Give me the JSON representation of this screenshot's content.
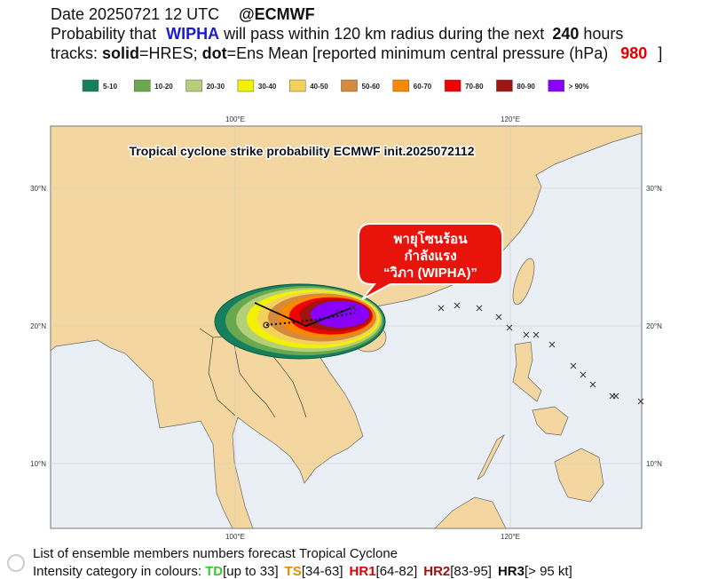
{
  "header": {
    "date": "Date 20250721 12 UTC",
    "source": "@ECMWF",
    "probability": {
      "prefix": "Probability that",
      "storm": "WIPHA",
      "middle": "will pass within 120 km radius during the next",
      "hours": "240",
      "suffix": "hours"
    },
    "tracks": {
      "prefix": "tracks:",
      "solid": "solid",
      "solid_desc": "=HRES;",
      "dot": "dot",
      "dot_desc": "=Ens Mean [reported minimum central pressure (hPa)",
      "pressure": "980",
      "close": "]"
    }
  },
  "legend": [
    {
      "label": "5-10",
      "color": "#16805e"
    },
    {
      "label": "10-20",
      "color": "#6aa84f"
    },
    {
      "label": "20-30",
      "color": "#b5cf78"
    },
    {
      "label": "30-40",
      "color": "#f2f200"
    },
    {
      "label": "40-50",
      "color": "#f3d25c"
    },
    {
      "label": "50-60",
      "color": "#d58a3c"
    },
    {
      "label": "60-70",
      "color": "#fa8800"
    },
    {
      "label": "70-80",
      "color": "#f00000"
    },
    {
      "label": "80-90",
      "color": "#9e1410"
    },
    {
      "label": "> 90%",
      "color": "#8a00ff"
    }
  ],
  "map": {
    "title": "Tropical cyclone strike probability ECMWF init.2025072112",
    "lon_labels": [
      "100°E",
      "120°E"
    ],
    "lat_labels": [
      "30°N",
      "20°N",
      "10°N"
    ],
    "callout": [
      "พายุโซนร้อน",
      "กำลังแรง",
      "“วิภา (WIPHA)”"
    ]
  },
  "footer": {
    "line1": "List of ensemble members numbers forecast Tropical Cyclone",
    "intensity": {
      "prefix": "Intensity category in colours:",
      "categories": [
        {
          "name": "TD",
          "range": "[up to 33]",
          "color": "#33cc33"
        },
        {
          "name": "TS",
          "range": "[34-63]",
          "color": "#e88a00"
        },
        {
          "name": "HR1",
          "range": "[64-82]",
          "color": "#e00000"
        },
        {
          "name": "HR2",
          "range": "[83-95]",
          "color": "#a01010"
        },
        {
          "name": "HR3",
          "range": "[> 95 kt]",
          "color": "#111111"
        }
      ]
    }
  }
}
